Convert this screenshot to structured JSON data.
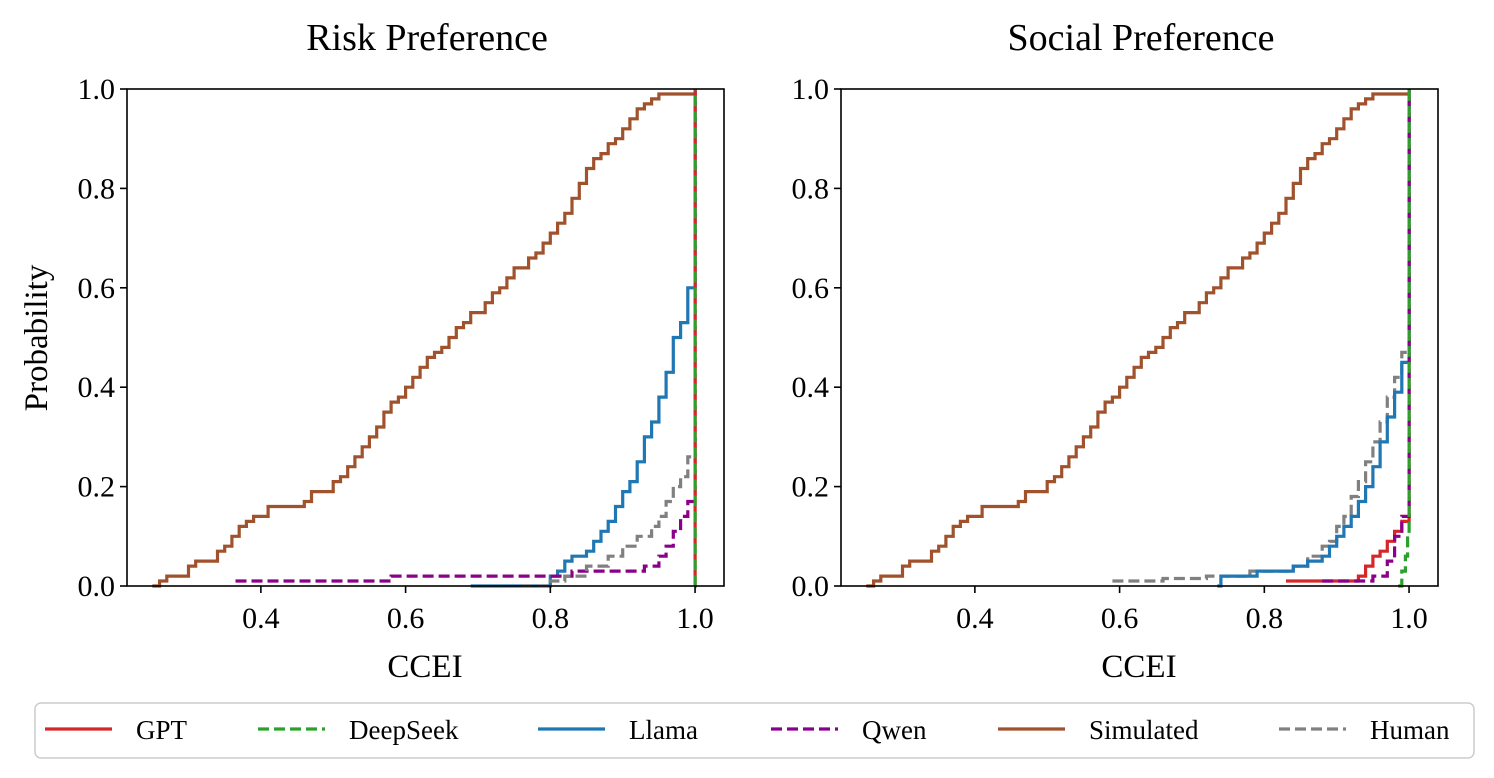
{
  "legend": {
    "entries": [
      {
        "label": "GPT",
        "color": "#d62728",
        "dash": "solid"
      },
      {
        "label": "DeepSeek",
        "color": "#2ca02c",
        "dash": "dashed"
      },
      {
        "label": "Llama",
        "color": "#1f77b4",
        "dash": "solid"
      },
      {
        "label": "Qwen",
        "color": "#8b008b",
        "dash": "dashed"
      },
      {
        "label": "Simulated",
        "color": "#a0522d",
        "dash": "solid"
      },
      {
        "label": "Human",
        "color": "#808080",
        "dash": "dashed"
      }
    ]
  },
  "chart_data": [
    {
      "type": "line",
      "title": "Risk Preference",
      "xlabel": "CCEI",
      "ylabel": "Probability",
      "xlim": [
        0.215,
        1.04
      ],
      "ylim": [
        0.0,
        1.0
      ],
      "xticks": [
        0.4,
        0.6,
        0.8,
        1.0
      ],
      "xtick_labels": [
        "0.4",
        "0.6",
        "0.8",
        "1.0"
      ],
      "yticks": [
        0.0,
        0.2,
        0.4,
        0.6,
        0.8,
        1.0
      ],
      "ytick_labels": [
        "0.0",
        "0.2",
        "0.4",
        "0.6",
        "0.8",
        "1.0"
      ],
      "series": [
        {
          "name": "Simulated",
          "color": "#a0522d",
          "dash": "solid",
          "x": [
            0.25,
            0.26,
            0.27,
            0.3,
            0.31,
            0.34,
            0.35,
            0.36,
            0.37,
            0.38,
            0.39,
            0.41,
            0.46,
            0.47,
            0.5,
            0.51,
            0.52,
            0.53,
            0.54,
            0.55,
            0.56,
            0.57,
            0.58,
            0.59,
            0.6,
            0.61,
            0.62,
            0.63,
            0.64,
            0.65,
            0.66,
            0.67,
            0.68,
            0.69,
            0.71,
            0.72,
            0.73,
            0.74,
            0.75,
            0.77,
            0.78,
            0.79,
            0.8,
            0.81,
            0.82,
            0.83,
            0.84,
            0.85,
            0.86,
            0.87,
            0.88,
            0.89,
            0.9,
            0.91,
            0.92,
            0.93,
            0.94,
            0.95,
            0.96,
            0.97,
            0.98,
            0.99,
            1.0
          ],
          "y": [
            0.0,
            0.01,
            0.02,
            0.04,
            0.05,
            0.07,
            0.08,
            0.1,
            0.12,
            0.13,
            0.14,
            0.16,
            0.17,
            0.19,
            0.21,
            0.22,
            0.24,
            0.26,
            0.28,
            0.3,
            0.32,
            0.35,
            0.37,
            0.38,
            0.4,
            0.42,
            0.44,
            0.46,
            0.47,
            0.48,
            0.5,
            0.52,
            0.53,
            0.55,
            0.57,
            0.59,
            0.6,
            0.62,
            0.64,
            0.66,
            0.67,
            0.69,
            0.71,
            0.73,
            0.75,
            0.78,
            0.81,
            0.84,
            0.86,
            0.87,
            0.89,
            0.9,
            0.92,
            0.94,
            0.96,
            0.97,
            0.98,
            0.99,
            0.99,
            0.99,
            0.99,
            0.99,
            1.0
          ]
        },
        {
          "name": "Llama",
          "color": "#1f77b4",
          "dash": "solid",
          "x": [
            0.69,
            0.8,
            0.81,
            0.82,
            0.83,
            0.85,
            0.86,
            0.87,
            0.88,
            0.89,
            0.9,
            0.91,
            0.92,
            0.93,
            0.94,
            0.95,
            0.96,
            0.97,
            0.98,
            0.99,
            1.0
          ],
          "y": [
            0.0,
            0.02,
            0.03,
            0.05,
            0.06,
            0.07,
            0.09,
            0.11,
            0.13,
            0.16,
            0.19,
            0.21,
            0.25,
            0.3,
            0.33,
            0.38,
            0.43,
            0.5,
            0.53,
            0.6,
            1.0
          ]
        },
        {
          "name": "Qwen",
          "color": "#8b008b",
          "dash": "dashed",
          "x": [
            0.365,
            0.58,
            0.8,
            0.83,
            0.86,
            0.9,
            0.93,
            0.95,
            0.96,
            0.97,
            0.98,
            0.99,
            1.0
          ],
          "y": [
            0.01,
            0.02,
            0.02,
            0.03,
            0.03,
            0.03,
            0.04,
            0.06,
            0.08,
            0.11,
            0.14,
            0.17,
            1.0
          ]
        },
        {
          "name": "Human",
          "color": "#808080",
          "dash": "dashed",
          "x": [
            0.76,
            0.8,
            0.82,
            0.85,
            0.88,
            0.9,
            0.92,
            0.94,
            0.95,
            0.96,
            0.97,
            0.98,
            0.99,
            1.0
          ],
          "y": [
            0.0,
            0.01,
            0.02,
            0.04,
            0.06,
            0.08,
            0.1,
            0.12,
            0.14,
            0.17,
            0.2,
            0.22,
            0.26,
            0.3
          ]
        },
        {
          "name": "GPT",
          "color": "#d62728",
          "dash": "solid",
          "x": [
            0.9995,
            1.0
          ],
          "y": [
            0.0,
            1.0
          ]
        },
        {
          "name": "DeepSeek",
          "color": "#2ca02c",
          "dash": "dashed",
          "x": [
            0.9995,
            1.0
          ],
          "y": [
            0.0,
            1.0
          ]
        }
      ]
    },
    {
      "type": "line",
      "title": "Social Preference",
      "xlabel": "CCEI",
      "ylabel": "",
      "xlim": [
        0.215,
        1.04
      ],
      "ylim": [
        0.0,
        1.0
      ],
      "xticks": [
        0.4,
        0.6,
        0.8,
        1.0
      ],
      "xtick_labels": [
        "0.4",
        "0.6",
        "0.8",
        "1.0"
      ],
      "yticks": [
        0.0,
        0.2,
        0.4,
        0.6,
        0.8,
        1.0
      ],
      "ytick_labels": [
        "0.0",
        "0.2",
        "0.4",
        "0.6",
        "0.8",
        "1.0"
      ],
      "series": [
        {
          "name": "Simulated",
          "color": "#a0522d",
          "dash": "solid",
          "x": [
            0.25,
            0.26,
            0.27,
            0.3,
            0.31,
            0.34,
            0.35,
            0.36,
            0.37,
            0.38,
            0.39,
            0.41,
            0.46,
            0.47,
            0.5,
            0.51,
            0.52,
            0.53,
            0.54,
            0.55,
            0.56,
            0.57,
            0.58,
            0.59,
            0.6,
            0.61,
            0.62,
            0.63,
            0.64,
            0.65,
            0.66,
            0.67,
            0.68,
            0.69,
            0.71,
            0.72,
            0.73,
            0.74,
            0.75,
            0.77,
            0.78,
            0.79,
            0.8,
            0.81,
            0.82,
            0.83,
            0.84,
            0.85,
            0.86,
            0.87,
            0.88,
            0.89,
            0.9,
            0.91,
            0.92,
            0.93,
            0.94,
            0.95,
            0.96,
            0.97,
            0.98,
            0.99,
            1.0
          ],
          "y": [
            0.0,
            0.01,
            0.02,
            0.04,
            0.05,
            0.07,
            0.08,
            0.1,
            0.12,
            0.13,
            0.14,
            0.16,
            0.17,
            0.19,
            0.21,
            0.22,
            0.24,
            0.26,
            0.28,
            0.3,
            0.32,
            0.35,
            0.37,
            0.38,
            0.4,
            0.42,
            0.44,
            0.46,
            0.47,
            0.48,
            0.5,
            0.52,
            0.53,
            0.55,
            0.57,
            0.59,
            0.6,
            0.62,
            0.64,
            0.66,
            0.67,
            0.69,
            0.71,
            0.73,
            0.75,
            0.78,
            0.81,
            0.84,
            0.86,
            0.87,
            0.89,
            0.9,
            0.92,
            0.94,
            0.96,
            0.97,
            0.98,
            0.99,
            0.99,
            0.99,
            0.99,
            0.99,
            1.0
          ]
        },
        {
          "name": "Human",
          "color": "#808080",
          "dash": "dashed",
          "x": [
            0.59,
            0.66,
            0.72,
            0.78,
            0.84,
            0.86,
            0.88,
            0.89,
            0.9,
            0.91,
            0.92,
            0.93,
            0.94,
            0.95,
            0.96,
            0.97,
            0.98,
            0.99,
            1.0
          ],
          "y": [
            0.01,
            0.015,
            0.02,
            0.03,
            0.04,
            0.06,
            0.08,
            0.09,
            0.12,
            0.14,
            0.18,
            0.21,
            0.25,
            0.29,
            0.33,
            0.38,
            0.42,
            0.47,
            1.0
          ]
        },
        {
          "name": "Llama",
          "color": "#1f77b4",
          "dash": "solid",
          "x": [
            0.735,
            0.74,
            0.79,
            0.84,
            0.86,
            0.88,
            0.89,
            0.9,
            0.91,
            0.92,
            0.93,
            0.94,
            0.95,
            0.96,
            0.97,
            0.98,
            0.99,
            1.0
          ],
          "y": [
            0.0,
            0.02,
            0.03,
            0.04,
            0.05,
            0.06,
            0.08,
            0.1,
            0.12,
            0.14,
            0.17,
            0.2,
            0.24,
            0.29,
            0.34,
            0.39,
            0.45,
            1.0
          ]
        },
        {
          "name": "GPT",
          "color": "#d62728",
          "dash": "solid",
          "x": [
            0.83,
            0.93,
            0.94,
            0.95,
            0.96,
            0.97,
            0.98,
            0.99,
            1.0
          ],
          "y": [
            0.01,
            0.02,
            0.04,
            0.06,
            0.07,
            0.09,
            0.11,
            0.13,
            1.0
          ]
        },
        {
          "name": "Qwen",
          "color": "#8b008b",
          "dash": "dashed",
          "x": [
            0.88,
            0.95,
            0.97,
            0.98,
            0.99,
            1.0
          ],
          "y": [
            0.01,
            0.02,
            0.05,
            0.1,
            0.14,
            1.0
          ]
        },
        {
          "name": "DeepSeek",
          "color": "#2ca02c",
          "dash": "dashed",
          "x": [
            0.985,
            0.99,
            0.995,
            0.998,
            1.0
          ],
          "y": [
            0.0,
            0.03,
            0.06,
            0.1,
            1.0
          ]
        }
      ]
    }
  ]
}
